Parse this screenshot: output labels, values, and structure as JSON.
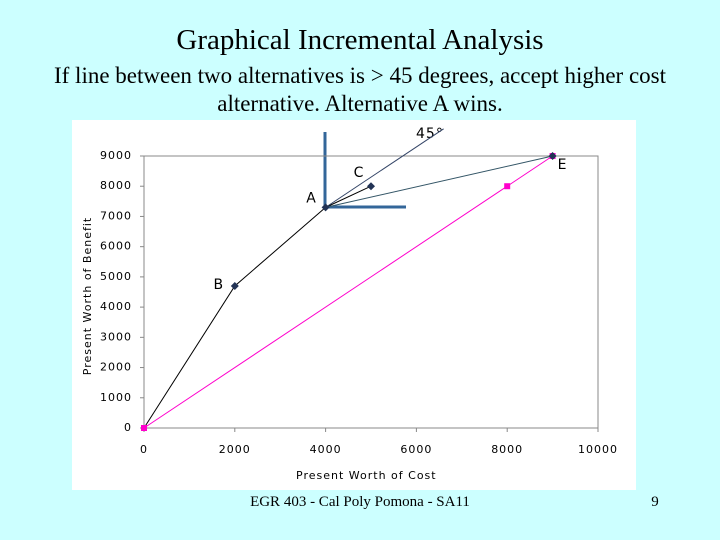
{
  "title": "Graphical Incremental Analysis",
  "subtitle": "If line between two alternatives is > 45 degrees, accept higher cost alternative. Alternative A wins.",
  "footer": "EGR 403 - Cal Poly Pomona - SA11",
  "page_number": 9,
  "chart_data": {
    "type": "line",
    "x_label": "Present Worth of Cost",
    "y_label": "Present Worth of Benefit",
    "annotation": "45°",
    "xlim": [
      0,
      10000
    ],
    "xticks": [
      0,
      2000,
      4000,
      6000,
      8000,
      10000
    ],
    "ylim": [
      0,
      9000
    ],
    "yticks": [
      0,
      1000,
      2000,
      3000,
      4000,
      5000,
      6000,
      7000,
      8000,
      9000
    ],
    "series": [
      {
        "color": "#000000",
        "x": [
          0,
          2000,
          4000
        ],
        "y": [
          0,
          4700,
          7300
        ]
      },
      {
        "color": "#000000",
        "x": [
          4000,
          5000
        ],
        "y": [
          7300,
          8000
        ]
      },
      {
        "color": "#334466",
        "x": [
          4000,
          6600
        ],
        "y": [
          7300,
          9900
        ]
      },
      {
        "color": "#335566",
        "x": [
          4000,
          9000
        ],
        "y": [
          7300,
          9000
        ]
      },
      {
        "color": "#ff00cc",
        "x": [
          0,
          8000,
          9000
        ],
        "y": [
          0,
          8000,
          9000
        ],
        "markers": true
      }
    ],
    "points": [
      {
        "label": "B",
        "x": 2000,
        "y": 4700
      },
      {
        "label": "A",
        "x": 4000,
        "y": 7300
      },
      {
        "label": "C",
        "x": 5000,
        "y": 8000
      },
      {
        "label": "E",
        "x": 9000,
        "y": 9000
      }
    ]
  }
}
